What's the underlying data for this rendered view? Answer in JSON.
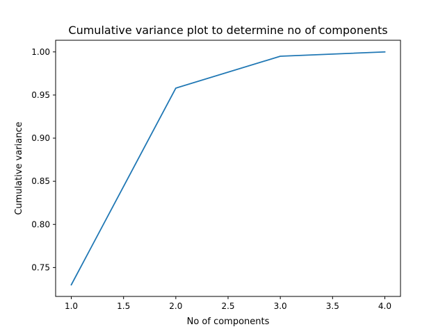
{
  "chart_data": {
    "type": "line",
    "title": "Cumulative variance plot to determine no of components",
    "xlabel": "No of components",
    "ylabel": "Cumulative variance",
    "xlim": [
      0.85,
      4.15
    ],
    "ylim": [
      0.7165,
      1.0135
    ],
    "xticks": [
      1.0,
      1.5,
      2.0,
      2.5,
      3.0,
      3.5,
      4.0
    ],
    "xtick_labels": [
      "1.0",
      "1.5",
      "2.0",
      "2.5",
      "3.0",
      "3.5",
      "4.0"
    ],
    "yticks": [
      0.75,
      0.8,
      0.85,
      0.9,
      0.95,
      1.0
    ],
    "ytick_labels": [
      "0.75",
      "0.80",
      "0.85",
      "0.90",
      "0.95",
      "1.00"
    ],
    "grid": false,
    "series": [
      {
        "color": "#1f77b4",
        "x": [
          1,
          2,
          3,
          4
        ],
        "y": [
          0.73,
          0.958,
          0.995,
          1.0
        ]
      }
    ]
  }
}
